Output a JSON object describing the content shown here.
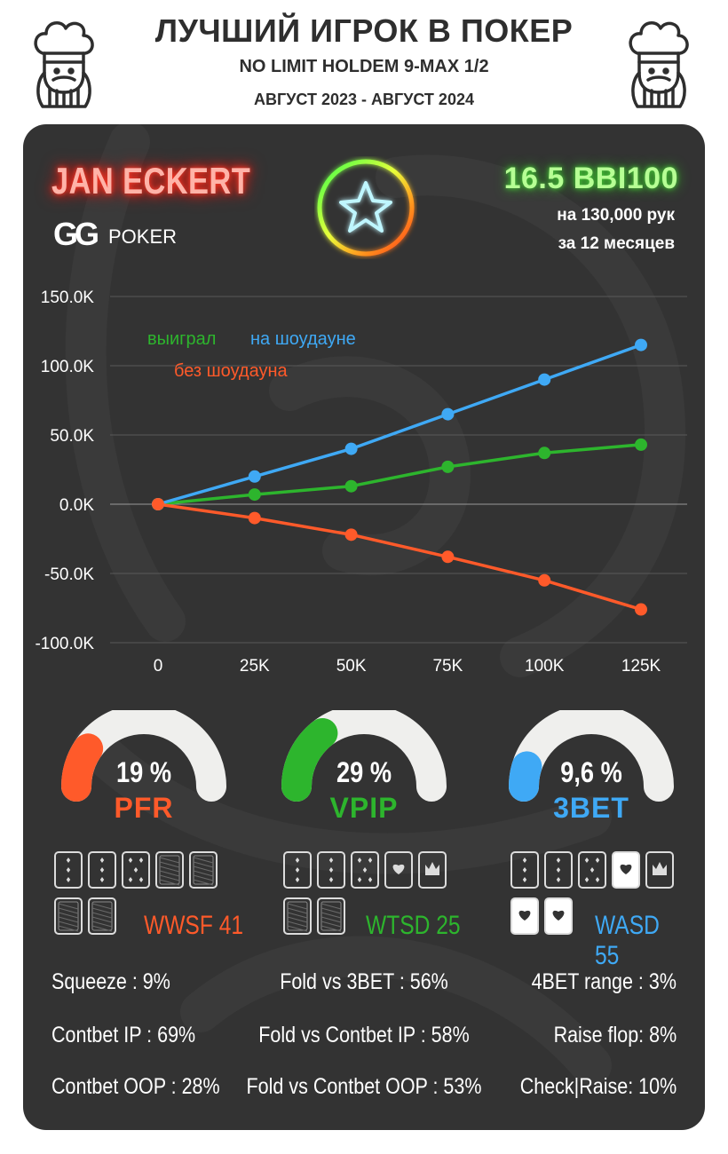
{
  "header": {
    "title": "ЛУЧШИЙ ИГРОК В ПОКЕР",
    "subtitle": "NO LIMIT HOLDEM 9-MAX 1/2",
    "period": "АВГУСТ 2023 - АВГУСТ 2024"
  },
  "player": {
    "name": "JAN ECKERT",
    "room_logo_text": "GG",
    "room_logo_word": "POKER",
    "winrate": "16.5 BBI100",
    "hands": "на 130,000 рук",
    "months": "за  12 месяцев"
  },
  "colors": {
    "showdown": "#3fa9f5",
    "won": "#2db52d",
    "no_showdown": "#ff5a2a",
    "panel": "#333333"
  },
  "chart_data": {
    "type": "line",
    "x": [
      0,
      25000,
      50000,
      75000,
      100000,
      125000
    ],
    "x_tick_labels": [
      "0",
      "25K",
      "50K",
      "75K",
      "100K",
      "125K"
    ],
    "ylim": [
      -100000,
      150000
    ],
    "y_ticks": [
      150000,
      100000,
      50000,
      0,
      -50000,
      -100000
    ],
    "y_tick_labels": [
      "150.0K",
      "100.0K",
      "50.0K",
      "0.0K",
      "-50.0K",
      "-100.0K"
    ],
    "grid": true,
    "series": [
      {
        "name": "на шоудауне",
        "color": "#3fa9f5",
        "values": [
          0,
          20000,
          40000,
          65000,
          90000,
          115000
        ]
      },
      {
        "name": "выиграл",
        "color": "#2db52d",
        "values": [
          0,
          7000,
          13000,
          27000,
          37000,
          43000
        ]
      },
      {
        "name": "без шоудауна",
        "color": "#ff5a2a",
        "values": [
          0,
          -10000,
          -22000,
          -38000,
          -55000,
          -76000
        ]
      }
    ]
  },
  "gauges": [
    {
      "label": "PFR",
      "value_text": "19 %",
      "value": 19,
      "color": "#ff5a2a"
    },
    {
      "label": "VPIP",
      "value_text": "29 %",
      "value": 29,
      "color": "#2db52d"
    },
    {
      "label": "3BET",
      "value_text": "9,6 %",
      "value": 9.6,
      "color": "#3fa9f5"
    }
  ],
  "card_stats": [
    {
      "text": "WWSF 41",
      "color": "#ff5a2a"
    },
    {
      "text": "WTSD 25",
      "color": "#2db52d"
    },
    {
      "text": "WASD 55",
      "color": "#3fa9f5"
    }
  ],
  "stats": {
    "left": [
      "Squeeze : 9%",
      "Contbet IP : 69%",
      "Contbet OOP : 28%"
    ],
    "center": [
      "Fold vs 3BET : 56%",
      "Fold vs Contbet IP : 58%",
      "Fold vs Contbet OOP : 53%"
    ],
    "right": [
      "4BET range : 3%",
      "Raise flop: 8%",
      "Check|Raise: 10%"
    ]
  }
}
